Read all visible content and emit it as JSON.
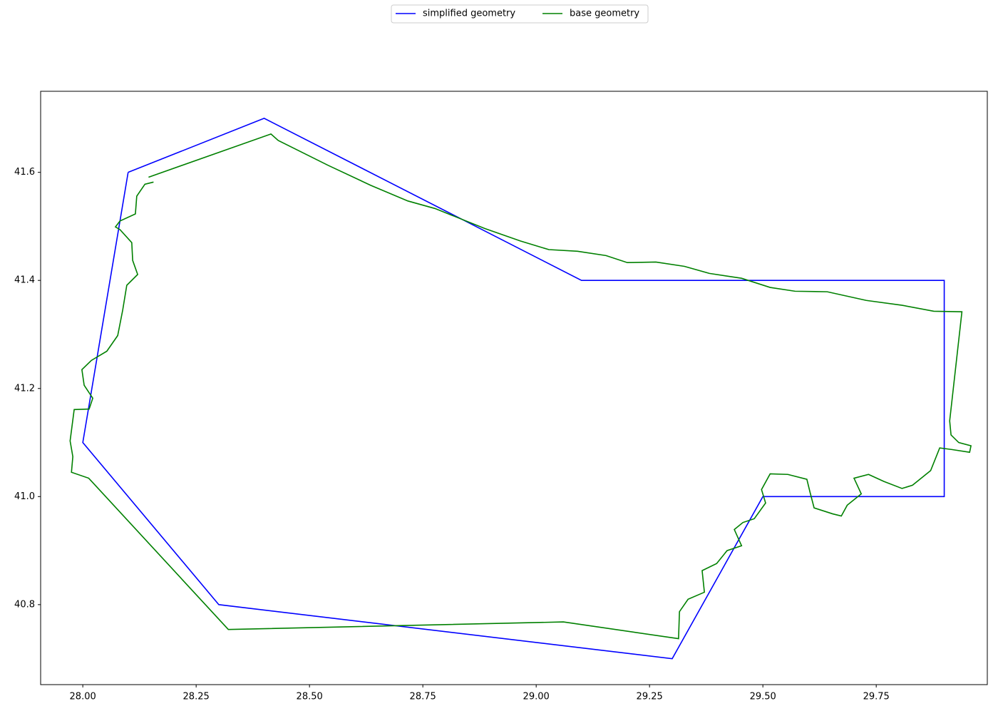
{
  "chart_data": {
    "type": "line",
    "legend": "upper center",
    "xlim": [
      27.907,
      29.995
    ],
    "ylim": [
      40.652,
      41.75
    ],
    "xticks": [
      {
        "value": 28,
        "label": "28.00"
      },
      {
        "value": 28.25,
        "label": "28.25"
      },
      {
        "value": 28.5,
        "label": "28.50"
      },
      {
        "value": 28.75,
        "label": "28.75"
      },
      {
        "value": 29,
        "label": "29.00"
      },
      {
        "value": 29.25,
        "label": "29.25"
      },
      {
        "value": 29.5,
        "label": "29.50"
      },
      {
        "value": 29.75,
        "label": "29.75"
      }
    ],
    "yticks": [
      40.8,
      {
        "value": 41,
        "label": "41.0"
      },
      41.2,
      41.4,
      41.6
    ],
    "series": [
      {
        "name": "simplified geometry",
        "color": "#0000ff",
        "x": [
          28.1,
          28.4,
          29.1,
          29.9,
          29.9,
          29.5,
          29.3,
          28.3,
          28.0,
          28.1
        ],
        "values": [
          41.6,
          41.7,
          41.4,
          41.4,
          41.0,
          41.0,
          40.7,
          40.8,
          41.1,
          41.6
        ]
      },
      {
        "name": "base geometry",
        "color": "#008000",
        "x": [
          28.145,
          28.415,
          28.431,
          28.541,
          28.635,
          28.717,
          28.777,
          28.887,
          28.965,
          29.028,
          29.091,
          29.154,
          29.201,
          29.264,
          29.327,
          29.382,
          29.453,
          29.516,
          29.571,
          29.642,
          29.728,
          29.807,
          29.877,
          29.939,
          29.912,
          29.915,
          29.932,
          29.959,
          29.956,
          29.917,
          29.89,
          29.87,
          29.83,
          29.807,
          29.767,
          29.733,
          29.701,
          29.717,
          29.686,
          29.673,
          29.654,
          29.613,
          29.604,
          29.597,
          29.555,
          29.516,
          29.497,
          29.506,
          29.481,
          29.456,
          29.437,
          29.453,
          29.421,
          29.398,
          29.366,
          29.371,
          29.335,
          29.316,
          29.314,
          29.06,
          28.321,
          28.013,
          27.975,
          27.978,
          27.972,
          27.981,
          28.014,
          28.022,
          28.003,
          27.998,
          28.019,
          28.053,
          28.077,
          28.088,
          28.097,
          28.121,
          28.11,
          28.108,
          28.082,
          28.072,
          28.082,
          28.116,
          28.119,
          28.137,
          28.156
        ],
        "values": [
          41.591,
          41.671,
          41.659,
          41.613,
          41.576,
          41.547,
          41.533,
          41.496,
          41.473,
          41.457,
          41.454,
          41.446,
          41.433,
          41.434,
          41.426,
          41.413,
          41.404,
          41.387,
          41.38,
          41.379,
          41.363,
          41.354,
          41.343,
          41.342,
          41.14,
          41.114,
          41.1,
          41.094,
          41.082,
          41.087,
          41.09,
          41.048,
          41.021,
          41.015,
          41.028,
          41.041,
          41.034,
          41.005,
          40.984,
          40.964,
          40.968,
          40.979,
          41.008,
          41.032,
          41.041,
          41.042,
          41.013,
          40.988,
          40.959,
          40.952,
          40.939,
          40.909,
          40.9,
          40.876,
          40.863,
          40.823,
          40.81,
          40.787,
          40.737,
          40.768,
          40.754,
          41.034,
          41.045,
          41.074,
          41.103,
          41.161,
          41.162,
          41.182,
          41.206,
          41.235,
          41.252,
          41.269,
          41.298,
          41.345,
          41.391,
          41.411,
          41.437,
          41.47,
          41.494,
          41.499,
          41.51,
          41.523,
          41.556,
          41.578,
          41.582
        ]
      }
    ]
  }
}
